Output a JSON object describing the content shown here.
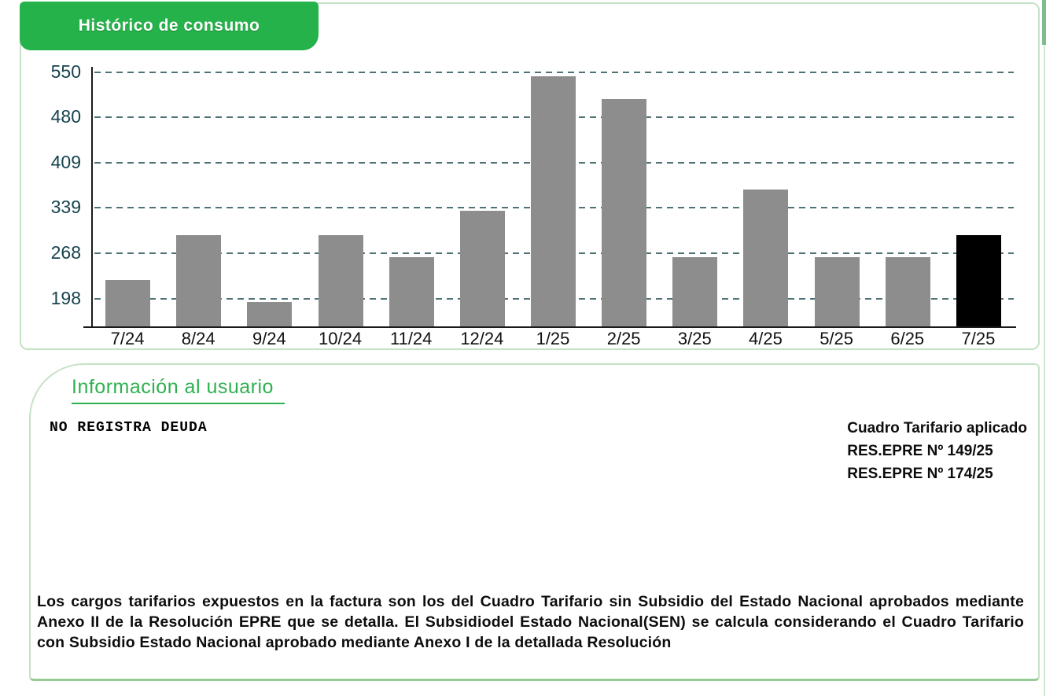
{
  "page": {
    "background": "#ffffff"
  },
  "chart_panel": {
    "header": "Histórico de consumo",
    "header_bg": "#26b24a",
    "header_text_color": "#ffffff",
    "border_color": "#c6e2c6"
  },
  "chart_data": {
    "type": "bar",
    "title": "Histórico de consumo",
    "categories": [
      "7/24",
      "8/24",
      "9/24",
      "10/24",
      "11/24",
      "12/24",
      "1/25",
      "2/25",
      "3/25",
      "4/25",
      "5/25",
      "6/25",
      "7/25"
    ],
    "values": [
      227,
      297,
      193,
      297,
      263,
      334,
      543,
      508,
      263,
      368,
      263,
      263,
      297
    ],
    "highlighted_category": "7/25",
    "yticks": [
      550,
      480,
      409,
      339,
      268,
      198
    ],
    "ylim": [
      155,
      558
    ],
    "xlabel": "",
    "ylabel": "",
    "grid": "dashed horizontal",
    "legend": "none",
    "colors": {
      "bar": "#8d8d8d",
      "highlighted_bar": "#000000",
      "gridline": "#4e7276",
      "ytick_label": "#17434f",
      "xtick_label": "#111111",
      "axis": "#1a1a1a"
    }
  },
  "info_panel": {
    "title": "Información al usuario",
    "title_color": "#2fb050",
    "border_color": "#c6e2c6",
    "status_text": "NO REGISTRA DEUDA",
    "tariff_block": {
      "line1": "Cuadro Tarifario aplicado",
      "line2": "RES.EPRE Nº 149/25",
      "line3": "RES.EPRE Nº 174/25"
    },
    "legal_text": "Los cargos tarifarios expuestos en la factura son los del Cuadro Tarifario sin Subsidio del Estado Nacional aprobados mediante Anexo II de la Resolución EPRE que se detalla. El Subsidiodel Estado Nacional(SEN) se calcula considerando el Cuadro Tarifario con Subsidio Estado Nacional aprobado mediante Anexo I de la detallada Resolución"
  }
}
